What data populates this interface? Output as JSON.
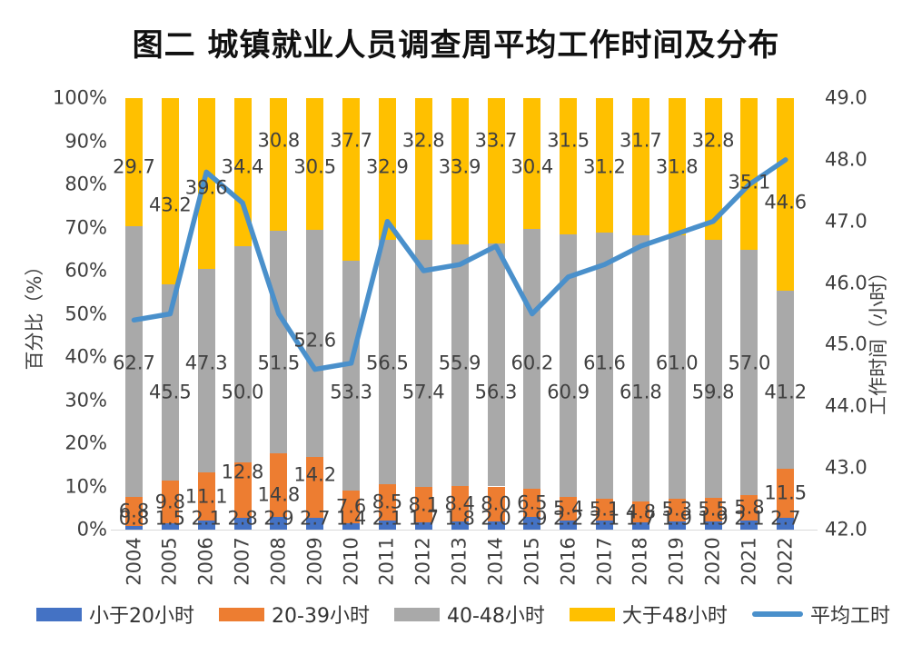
{
  "title": "图二 城镇就业人员调查周平均工作时间及分布",
  "chart_data": {
    "type": "bar",
    "subtype": "stacked-percent-with-line",
    "title": "图二 城镇就业人员调查周平均工作时间及分布",
    "categories": [
      "2004",
      "2005",
      "2006",
      "2007",
      "2008",
      "2009",
      "2010",
      "2011",
      "2012",
      "2013",
      "2014",
      "2015",
      "2016",
      "2017",
      "2018",
      "2019",
      "2020",
      "2021",
      "2022"
    ],
    "series": [
      {
        "name": "小于20小时",
        "type": "bar",
        "color": "#4472C4",
        "values": [
          0.8,
          1.5,
          2.1,
          2.8,
          2.9,
          2.7,
          1.4,
          2.1,
          1.7,
          1.8,
          2.0,
          2.9,
          2.2,
          2.1,
          1.7,
          1.9,
          1.9,
          2.1,
          2.7
        ]
      },
      {
        "name": "20-39小时",
        "type": "bar",
        "color": "#ED7D31",
        "values": [
          6.8,
          9.8,
          11.1,
          12.8,
          14.8,
          14.2,
          7.6,
          8.5,
          8.1,
          8.4,
          8.0,
          6.5,
          5.4,
          5.1,
          4.8,
          5.3,
          5.5,
          5.8,
          11.5
        ]
      },
      {
        "name": "40-48小时",
        "type": "bar",
        "color": "#A9A9A9",
        "values": [
          62.7,
          45.5,
          47.3,
          50.0,
          51.5,
          52.6,
          53.3,
          56.5,
          57.4,
          55.9,
          56.3,
          60.2,
          60.9,
          61.6,
          61.8,
          61.0,
          59.8,
          57.0,
          41.2
        ]
      },
      {
        "name": "大于48小时",
        "type": "bar",
        "color": "#FFC000",
        "values": [
          29.7,
          43.2,
          39.6,
          34.4,
          30.8,
          30.5,
          37.7,
          32.9,
          32.8,
          33.9,
          33.7,
          30.4,
          31.5,
          31.2,
          31.7,
          31.8,
          32.8,
          35.1,
          44.6
        ]
      },
      {
        "name": "平均工时",
        "type": "line",
        "color": "#4A90CB",
        "axis": "right",
        "values": [
          45.4,
          45.5,
          47.8,
          47.3,
          45.5,
          44.6,
          44.7,
          47.0,
          46.2,
          46.3,
          46.6,
          45.5,
          46.1,
          46.3,
          46.6,
          46.8,
          47.0,
          47.6,
          48.0
        ]
      }
    ],
    "left_axis": {
      "label": "百分比（%）",
      "min": 0,
      "max": 100,
      "ticks": [
        "100%",
        "90%",
        "80%",
        "70%",
        "60%",
        "50%",
        "40%",
        "30%",
        "20%",
        "10%",
        "0%"
      ]
    },
    "right_axis": {
      "label": "工作时间（小时）",
      "min": 42.0,
      "max": 49.0,
      "ticks": [
        "49.0",
        "48.0",
        "47.0",
        "46.0",
        "45.0",
        "44.0",
        "43.0",
        "42.0"
      ]
    },
    "legend_position": "bottom",
    "grid": false,
    "label_text_color": "#404040"
  }
}
